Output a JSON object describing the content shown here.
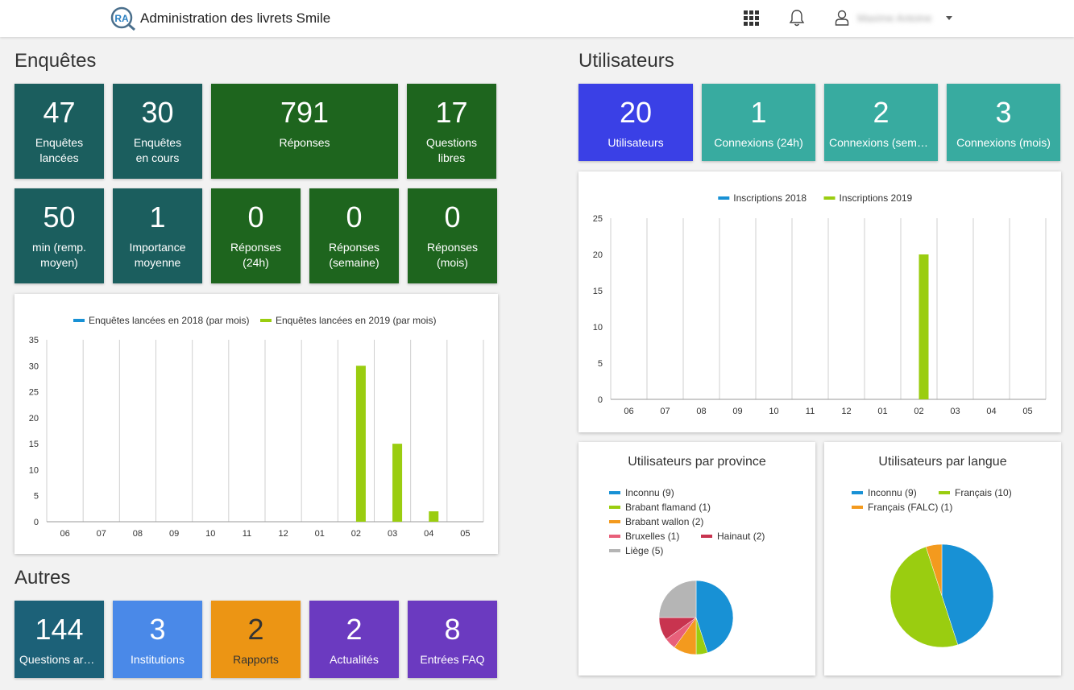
{
  "header": {
    "logo_text": "RA",
    "title": "Administration des livrets Smile",
    "user_name": "Maxime Antoine"
  },
  "enquetes": {
    "title": "Enquêtes",
    "tiles": [
      {
        "value": "47",
        "label": "Enquêtes\nlancées",
        "color": "#1b5e5e"
      },
      {
        "value": "30",
        "label": "Enquêtes\nen cours",
        "color": "#1b5e5e"
      },
      {
        "value": "791",
        "label": "Réponses",
        "color": "#1e651e"
      },
      {
        "value": "17",
        "label": "Questions\nlibres",
        "color": "#1e651e"
      },
      {
        "value": "50",
        "label": "min (remp.\nmoyen)",
        "color": "#1b5e5e"
      },
      {
        "value": "1",
        "label": "Importance\nmoyenne",
        "color": "#1b5e5e"
      },
      {
        "value": "0",
        "label": "Réponses\n(24h)",
        "color": "#1e651e"
      },
      {
        "value": "0",
        "label": "Réponses\n(semaine)",
        "color": "#1e651e"
      },
      {
        "value": "0",
        "label": "Réponses\n(mois)",
        "color": "#1e651e"
      }
    ]
  },
  "utilisateurs": {
    "title": "Utilisateurs",
    "tiles": [
      {
        "value": "20",
        "label": "Utilisateurs",
        "color": "#3a40e6"
      },
      {
        "value": "1",
        "label": "Connexions (24h)",
        "color": "#38aba0"
      },
      {
        "value": "2",
        "label": "Connexions (semaine)",
        "color": "#38aba0"
      },
      {
        "value": "3",
        "label": "Connexions (mois)",
        "color": "#38aba0"
      }
    ]
  },
  "autres": {
    "title": "Autres",
    "tiles": [
      {
        "value": "144",
        "label": "Questions archivées",
        "color": "#1c6178"
      },
      {
        "value": "3",
        "label": "Institutions",
        "color": "#4a89e8"
      },
      {
        "value": "2",
        "label": "Rapports",
        "color": "#ec9514"
      },
      {
        "value": "2",
        "label": "Actualités",
        "color": "#6b3ac0"
      },
      {
        "value": "8",
        "label": "Entrées FAQ",
        "color": "#6b3ac0"
      }
    ]
  },
  "chart_data": [
    {
      "type": "bar",
      "title": "",
      "categories": [
        "06",
        "07",
        "08",
        "09",
        "10",
        "11",
        "12",
        "01",
        "02",
        "03",
        "04",
        "05"
      ],
      "series": [
        {
          "name": "Enquêtes lancées en 2018 (par mois)",
          "color": "#1891d5",
          "values": [
            0,
            0,
            0,
            0,
            0,
            0,
            0,
            0,
            0,
            0,
            0,
            0
          ]
        },
        {
          "name": "Enquêtes lancées en 2019 (par mois)",
          "color": "#9acd10",
          "values": [
            0,
            0,
            0,
            0,
            0,
            0,
            0,
            0,
            30,
            15,
            2,
            0
          ]
        }
      ],
      "yticks": [
        0,
        5,
        10,
        15,
        20,
        25,
        30,
        35
      ],
      "ylim": [
        0,
        35
      ],
      "legend": "top-center",
      "grid": true
    },
    {
      "type": "bar",
      "title": "",
      "categories": [
        "06",
        "07",
        "08",
        "09",
        "10",
        "11",
        "12",
        "01",
        "02",
        "03",
        "04",
        "05"
      ],
      "series": [
        {
          "name": "Inscriptions 2018",
          "color": "#1891d5",
          "values": [
            0,
            0,
            0,
            0,
            0,
            0,
            0,
            0,
            0,
            0,
            0,
            0
          ]
        },
        {
          "name": "Inscriptions 2019",
          "color": "#9acd10",
          "values": [
            0,
            0,
            0,
            0,
            0,
            0,
            0,
            0,
            20,
            0,
            0,
            0
          ]
        }
      ],
      "yticks": [
        0,
        5,
        10,
        15,
        20,
        25
      ],
      "ylim": [
        0,
        25
      ],
      "legend": "top-center",
      "grid": true
    },
    {
      "type": "pie",
      "title": "Utilisateurs par province",
      "slices": [
        {
          "label": "Inconnu (9)",
          "value": 9,
          "color": "#1891d5"
        },
        {
          "label": "Brabant flamand (1)",
          "value": 1,
          "color": "#9acd10"
        },
        {
          "label": "Brabant wallon (2)",
          "value": 2,
          "color": "#f39a1e"
        },
        {
          "label": "Bruxelles (1)",
          "value": 1,
          "color": "#e8607a"
        },
        {
          "label": "Hainaut (2)",
          "value": 2,
          "color": "#c8344f"
        },
        {
          "label": "Liège (5)",
          "value": 5,
          "color": "#b5b5b5"
        }
      ],
      "legend": "top-left"
    },
    {
      "type": "pie",
      "title": "Utilisateurs par langue",
      "slices": [
        {
          "label": "Inconnu (9)",
          "value": 9,
          "color": "#1891d5"
        },
        {
          "label": "Français (10)",
          "value": 10,
          "color": "#9acd10"
        },
        {
          "label": "Français (FALC) (1)",
          "value": 1,
          "color": "#f39a1e"
        }
      ],
      "legend": "top-left"
    }
  ]
}
